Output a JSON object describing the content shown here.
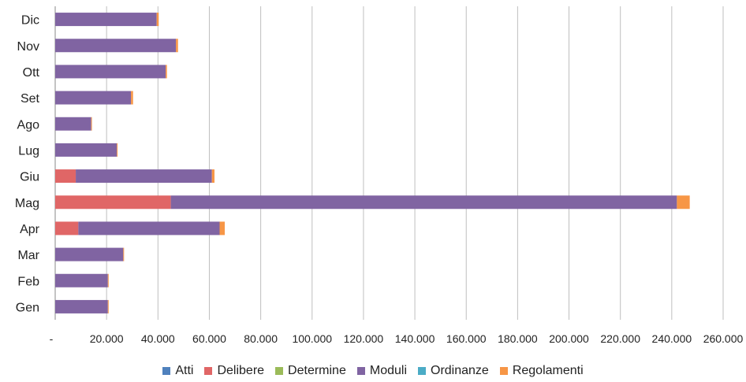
{
  "chart_data": {
    "type": "bar",
    "orientation": "horizontal",
    "stacked": true,
    "categories": [
      "Gen",
      "Feb",
      "Mar",
      "Apr",
      "Mag",
      "Giu",
      "Lug",
      "Ago",
      "Set",
      "Ott",
      "Nov",
      "Dic"
    ],
    "series": [
      {
        "name": "Atti",
        "color": "#4f81bd",
        "values": [
          0,
          0,
          0,
          0,
          0,
          0,
          0,
          0,
          0,
          0,
          0,
          0
        ]
      },
      {
        "name": "Delibere",
        "color": "#e06666",
        "values": [
          0,
          0,
          0,
          9000,
          45000,
          8000,
          0,
          0,
          0,
          0,
          0,
          0
        ]
      },
      {
        "name": "Determine",
        "color": "#9bbb59",
        "values": [
          0,
          0,
          0,
          0,
          0,
          0,
          0,
          0,
          0,
          0,
          0,
          0
        ]
      },
      {
        "name": "Moduli",
        "color": "#8064a2",
        "values": [
          20500,
          20500,
          26500,
          55000,
          197000,
          53000,
          24000,
          14000,
          29500,
          43000,
          47000,
          39500
        ]
      },
      {
        "name": "Ordinanze",
        "color": "#4bacc6",
        "values": [
          0,
          0,
          0,
          0,
          0,
          0,
          0,
          0,
          0,
          0,
          0,
          0
        ]
      },
      {
        "name": "Regolamenti",
        "color": "#f79646",
        "values": [
          300,
          300,
          300,
          2000,
          5000,
          1000,
          300,
          300,
          800,
          500,
          800,
          800
        ]
      }
    ],
    "x_ticks": [
      "-",
      "20.000",
      "40.000",
      "60.000",
      "80.000",
      "100.000",
      "120.000",
      "140.000",
      "160.000",
      "180.000",
      "200.000",
      "220.000",
      "240.000",
      "260.000"
    ],
    "xlim": [
      0,
      260000
    ],
    "grid": "vertical",
    "legend_position": "bottom"
  }
}
